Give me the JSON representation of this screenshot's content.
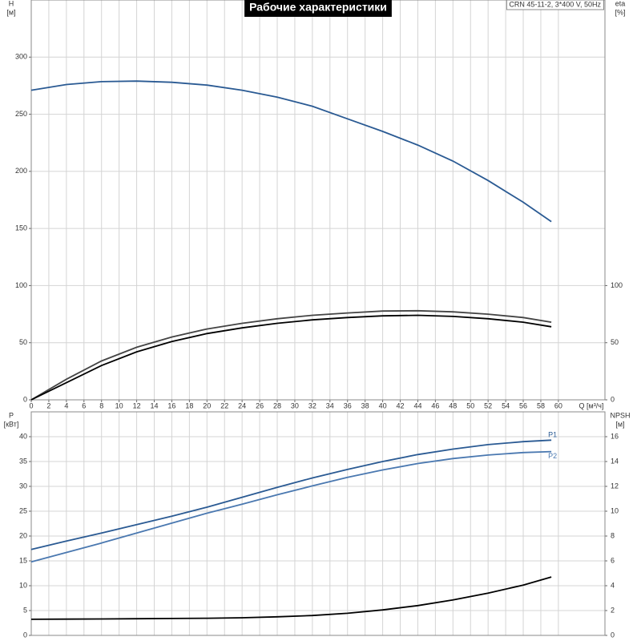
{
  "chart_data": [
    {
      "type": "line",
      "title": "Рабочие характеристики",
      "subtitle": "CRN 45-11-2, 3*400 V, 50Hz",
      "x": [
        0,
        4,
        8,
        12,
        16,
        20,
        24,
        28,
        32,
        36,
        40,
        44,
        48,
        52,
        56,
        59.2
      ],
      "xlim": [
        0,
        65.3
      ],
      "xticks": [
        0,
        2,
        4,
        6,
        8,
        10,
        12,
        14,
        16,
        18,
        20,
        22,
        24,
        26,
        28,
        30,
        32,
        34,
        36,
        38,
        40,
        42,
        44,
        46,
        48,
        50,
        52,
        54,
        56,
        58,
        60
      ],
      "xlabel": "Q [м³/ч]",
      "ylabel": [
        "H",
        "[м]"
      ],
      "ylim": [
        0,
        350
      ],
      "yticks": [
        0,
        50,
        100,
        150,
        200,
        250,
        300
      ],
      "y2label": [
        "eta",
        "[%]"
      ],
      "y2lim": [
        0,
        350
      ],
      "y2ticks": [
        0,
        50,
        100
      ],
      "grid": true,
      "series": [
        {
          "color": "#2a5a93",
          "values": [
            271,
            276,
            278.5,
            279,
            278,
            275.5,
            271,
            265,
            257,
            246,
            235,
            223,
            209,
            192,
            173,
            156
          ]
        },
        {
          "color": "#444444",
          "axis": "y2",
          "values": [
            0,
            18,
            34,
            46,
            55,
            62,
            67,
            71,
            74,
            76,
            77.7,
            78,
            77,
            75,
            72,
            68
          ]
        },
        {
          "color": "#000000",
          "axis": "y2",
          "values": [
            0,
            15,
            30,
            42,
            51,
            58,
            63,
            67,
            70,
            72,
            73.5,
            74,
            73,
            71,
            68,
            64
          ]
        }
      ]
    },
    {
      "type": "line",
      "x": [
        0,
        4,
        8,
        12,
        16,
        20,
        24,
        28,
        32,
        36,
        40,
        44,
        48,
        52,
        56,
        59.2
      ],
      "xlim": [
        0,
        65.3
      ],
      "xticks": [
        0,
        2,
        4,
        6,
        8,
        10,
        12,
        14,
        16,
        18,
        20,
        22,
        24,
        26,
        28,
        30,
        32,
        34,
        36,
        38,
        40,
        42,
        44,
        46,
        48,
        50,
        52,
        54,
        56,
        58,
        60
      ],
      "ylabel": [
        "P",
        "[кВт]"
      ],
      "ylim": [
        0,
        45
      ],
      "yticks": [
        0,
        5,
        10,
        15,
        20,
        25,
        30,
        35,
        40
      ],
      "y2label": [
        "NPSH",
        "[м]"
      ],
      "y2lim": [
        0,
        18
      ],
      "y2ticks": [
        0,
        2,
        4,
        6,
        8,
        10,
        12,
        14,
        16
      ],
      "grid": true,
      "series": [
        {
          "name": "P1",
          "color": "#2a5a93",
          "values": [
            17.3,
            19.0,
            20.6,
            22.3,
            24.0,
            25.8,
            27.8,
            29.8,
            31.7,
            33.4,
            35.0,
            36.4,
            37.5,
            38.4,
            39.0,
            39.3
          ]
        },
        {
          "name": "P2",
          "color": "#4a78b0",
          "values": [
            14.8,
            16.7,
            18.6,
            20.6,
            22.6,
            24.6,
            26.4,
            28.3,
            30.1,
            31.8,
            33.3,
            34.6,
            35.6,
            36.3,
            36.8,
            37.0
          ]
        },
        {
          "color": "#000000",
          "axis": "y2",
          "values": [
            1.3,
            1.31,
            1.32,
            1.34,
            1.36,
            1.38,
            1.42,
            1.5,
            1.6,
            1.78,
            2.05,
            2.4,
            2.85,
            3.4,
            4.05,
            4.7
          ]
        }
      ]
    }
  ]
}
